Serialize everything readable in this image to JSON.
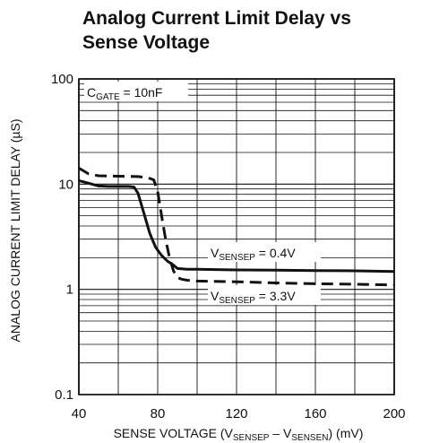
{
  "chart_data": {
    "type": "line",
    "title": [
      "Analog Current Limit Delay vs",
      "Sense Voltage"
    ],
    "xlabel": {
      "prefix": "SENSE VOLTAGE (V",
      "sub1": "SENSEP",
      "mid": " – V",
      "sub2": "SENSEN",
      "suffix": ") (mV)"
    },
    "ylabel": "ANALOG CURRENT LIMIT DELAY (µS)",
    "x_ticks": [
      "40",
      "80",
      "120",
      "160",
      "200"
    ],
    "y_ticks": [
      "0.1",
      "1",
      "10",
      "100"
    ],
    "xlim": [
      40,
      200
    ],
    "ylim": [
      0.1,
      100
    ],
    "y_scale": "log",
    "grid": true,
    "annotation": {
      "main": "C",
      "sub": "GATE",
      "rest": " = 10nF"
    },
    "series": [
      {
        "label": {
          "main": "V",
          "sub": "SENSEP",
          "rest": " = 0.4V"
        },
        "style": "solid",
        "x": [
          40,
          45,
          50,
          55,
          60,
          65,
          68,
          70,
          73,
          76,
          79,
          82,
          85,
          88,
          90,
          95,
          100,
          120,
          140,
          160,
          180,
          200
        ],
        "y": [
          10.8,
          10.2,
          9.6,
          9.5,
          9.5,
          9.5,
          9.4,
          8.2,
          5.3,
          3.4,
          2.5,
          2.1,
          1.85,
          1.7,
          1.58,
          1.55,
          1.55,
          1.53,
          1.52,
          1.51,
          1.5,
          1.48
        ]
      },
      {
        "label": {
          "main": "V",
          "sub": "SENSEP",
          "rest": " = 3.3V"
        },
        "style": "dashed",
        "x": [
          40,
          42,
          45,
          50,
          60,
          70,
          75,
          78,
          80,
          82,
          84,
          86,
          88,
          90,
          92,
          95,
          100,
          120,
          140,
          160,
          180,
          200
        ],
        "y": [
          14.2,
          13.5,
          12.5,
          12.0,
          11.9,
          11.8,
          11.5,
          11.0,
          8.5,
          5.0,
          3.0,
          2.0,
          1.5,
          1.3,
          1.25,
          1.22,
          1.2,
          1.18,
          1.15,
          1.13,
          1.12,
          1.1
        ]
      }
    ]
  }
}
